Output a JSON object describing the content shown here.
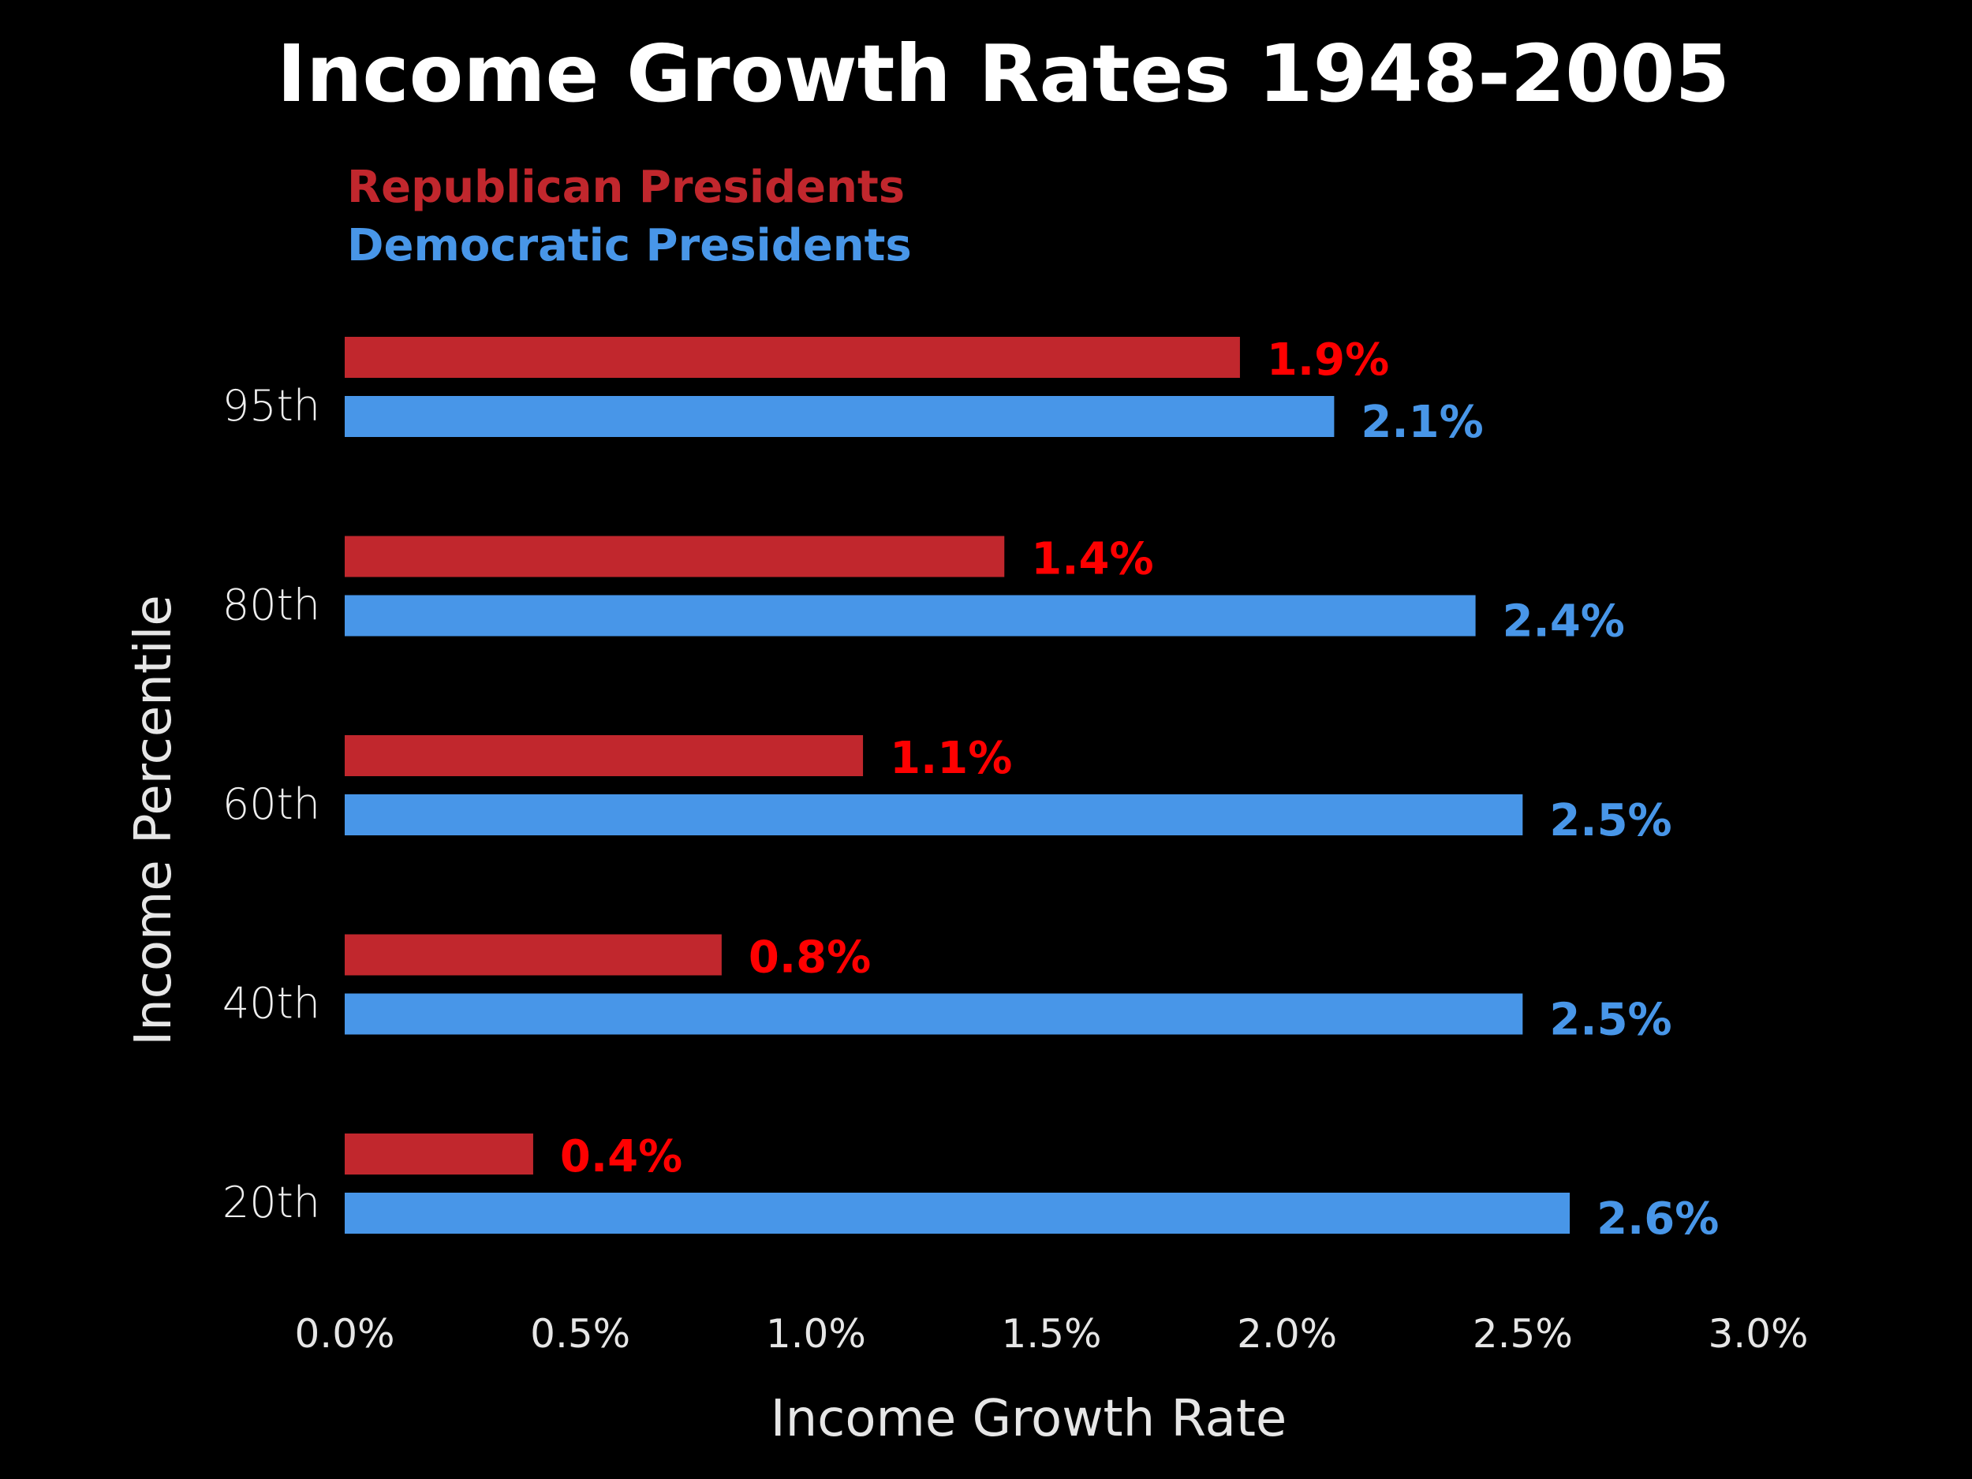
{
  "chart_data": {
    "type": "bar",
    "orientation": "horizontal",
    "title": "Income Growth Rates 1948-2005",
    "xlabel": "Income Growth Rate",
    "ylabel": "Income Percentile",
    "xlim": [
      0,
      3.0
    ],
    "xticks": [
      "0.0%",
      "0.5%",
      "1.0%",
      "1.5%",
      "2.0%",
      "2.5%",
      "3.0%"
    ],
    "categories": [
      "95th",
      "80th",
      "60th",
      "40th",
      "20th"
    ],
    "series": [
      {
        "name": "Republican Presidents",
        "color": "#c1272d",
        "label_color": "#ff0000",
        "values": [
          1.9,
          1.4,
          1.1,
          0.8,
          0.4
        ],
        "labels": [
          "1.9%",
          "1.4%",
          "1.1%",
          "0.8%",
          "0.4%"
        ]
      },
      {
        "name": "Democratic Presidents",
        "color": "#4896e8",
        "label_color": "#4896e8",
        "values": [
          2.1,
          2.4,
          2.5,
          2.5,
          2.6
        ],
        "labels": [
          "2.1%",
          "2.4%",
          "2.5%",
          "2.5%",
          "2.6%"
        ]
      }
    ],
    "legend_position": "top-left",
    "grid": false,
    "background": "#000000"
  }
}
